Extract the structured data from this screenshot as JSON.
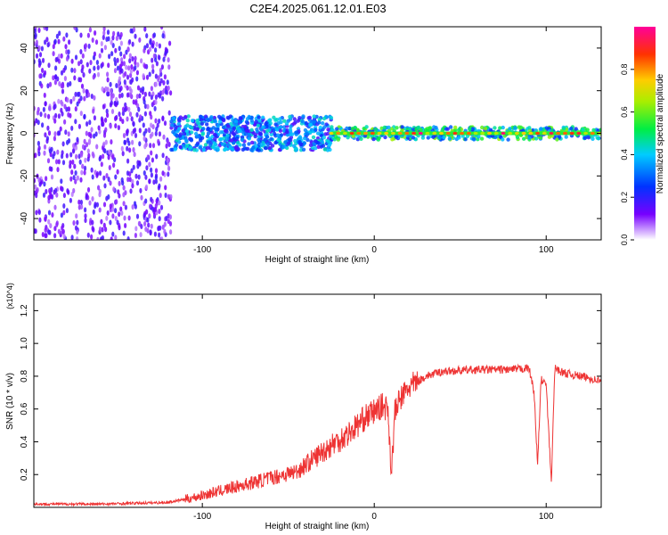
{
  "title": "C2E4.2025.061.12.01.E03",
  "chart_data": [
    {
      "type": "heatmap",
      "xlabel": "Height of straight line (km)",
      "ylabel": "Frequency (Hz)",
      "xlim": [
        -198,
        132
      ],
      "ylim": [
        -50,
        50
      ],
      "xticks": [
        "-100",
        "0",
        "100"
      ],
      "yticks": [
        "-40",
        "-20",
        "0",
        "20",
        "40"
      ],
      "colorbar": {
        "label": "Normalized spectral amplitude",
        "range": [
          0,
          1
        ],
        "ticks": [
          "0.0",
          "0.2",
          "0.4",
          "0.6",
          "0.8"
        ]
      },
      "regions": [
        {
          "x_range": [
            -198,
            -118
          ],
          "freq_range": [
            -50,
            50
          ],
          "amplitude": 0.15
        },
        {
          "x_range": [
            -118,
            -25
          ],
          "freq_range": [
            -8,
            8
          ],
          "amplitude": 0.35
        },
        {
          "x_range": [
            -25,
            132
          ],
          "freq_range": [
            -3,
            3
          ],
          "amplitude": 0.5
        }
      ],
      "peak_line": {
        "freq": 0,
        "x_range": [
          -25,
          132
        ],
        "amplitude": 0.9
      }
    },
    {
      "type": "line",
      "xlabel": "Height of straight line (km)",
      "ylabel": "SNR (10 * v/v)",
      "ylabel_exponent": "(x10^4)",
      "xlim": [
        -198,
        132
      ],
      "ylim": [
        0,
        1.3
      ],
      "xticks": [
        "-100",
        "0",
        "100"
      ],
      "yticks": [
        "0.2",
        "0.4",
        "0.6",
        "0.8",
        "1.0",
        "1.2"
      ],
      "color": "#ee3333",
      "x": [
        -198,
        -160,
        -120,
        -105,
        -90,
        -75,
        -60,
        -45,
        -35,
        -25,
        -15,
        -5,
        5,
        8,
        10,
        12,
        15,
        20,
        30,
        40,
        60,
        80,
        90,
        93,
        95,
        97,
        100,
        103,
        105,
        110,
        120,
        132
      ],
      "y": [
        0.02,
        0.02,
        0.03,
        0.06,
        0.1,
        0.14,
        0.18,
        0.22,
        0.3,
        0.38,
        0.45,
        0.55,
        0.62,
        0.6,
        0.2,
        0.58,
        0.66,
        0.73,
        0.8,
        0.83,
        0.84,
        0.84,
        0.85,
        0.7,
        0.25,
        0.78,
        0.75,
        0.15,
        0.85,
        0.82,
        0.8,
        0.77
      ]
    }
  ]
}
